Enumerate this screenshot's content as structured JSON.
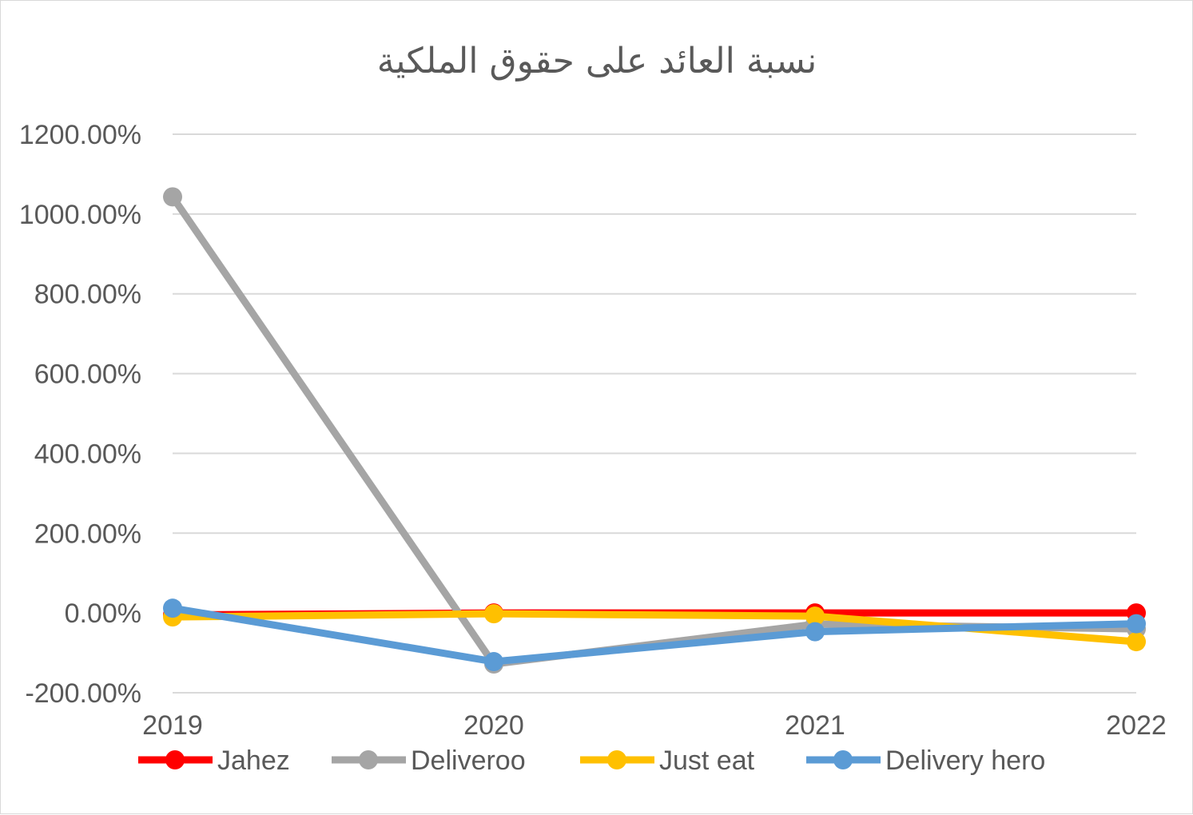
{
  "chart_data": {
    "type": "line",
    "title": "نسبة العائد على حقوق الملكية",
    "xlabel": "",
    "ylabel": "",
    "categories": [
      "2019",
      "2020",
      "2021",
      "2022"
    ],
    "ylim": [
      -200,
      1200
    ],
    "y_ticks": [
      -200,
      0,
      200,
      400,
      600,
      800,
      1000,
      1200
    ],
    "y_tick_labels": [
      "-200.00%",
      "0.00%",
      "200.00%",
      "400.00%",
      "600.00%",
      "800.00%",
      "1000.00%",
      "1200.00%"
    ],
    "grid": true,
    "legend_position": "bottom",
    "series": [
      {
        "name": "Jahez",
        "color": "#ff0000",
        "values": [
          -5,
          0,
          0,
          0
        ]
      },
      {
        "name": "Deliveroo",
        "color": "#a5a5a5",
        "values": [
          1043,
          -128,
          -28,
          -40
        ]
      },
      {
        "name": "Just eat",
        "color": "#ffc000",
        "values": [
          -10,
          -2,
          -8,
          -72
        ]
      },
      {
        "name": "Delivery hero",
        "color": "#5b9bd5",
        "values": [
          12,
          -122,
          -47,
          -27
        ]
      }
    ]
  }
}
